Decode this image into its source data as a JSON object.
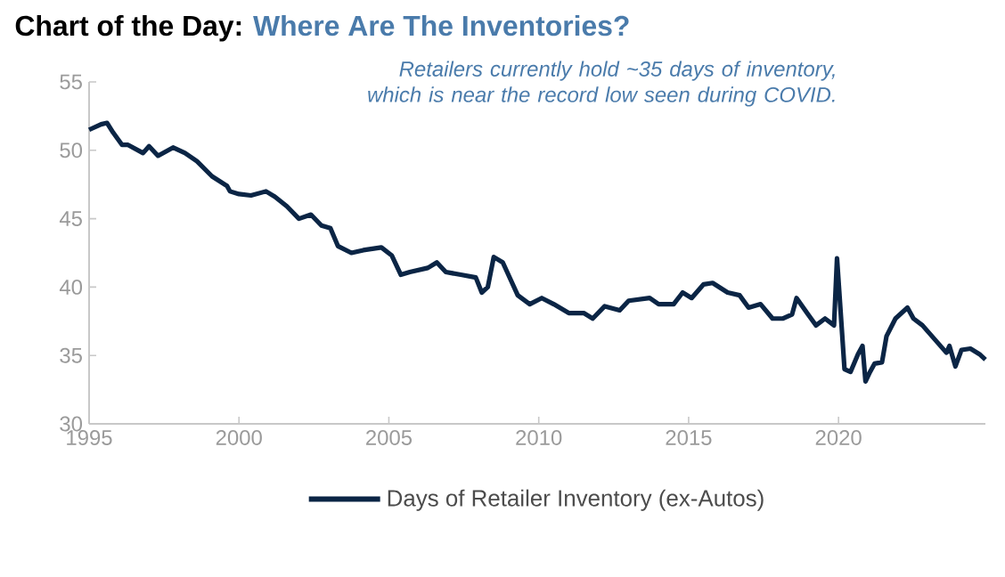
{
  "chart_data": {
    "type": "line",
    "title": "Chart of the Day:",
    "subtitle": "Where Are The Inventories?",
    "annotations": [
      "Retailers currently hold ~35 days of inventory, which is near the record low seen during COVID."
    ],
    "x": [
      1995.0,
      1995.4,
      1995.6,
      1995.8,
      1996.1,
      1996.3,
      1996.8,
      1997.0,
      1997.3,
      1997.8,
      1998.2,
      1998.6,
      1999.1,
      1999.6,
      1999.7,
      2000.0,
      2000.4,
      2000.9,
      2001.2,
      2001.6,
      2002.0,
      2002.4,
      2002.75,
      2003.05,
      2003.3,
      2003.75,
      2004.15,
      2004.75,
      2005.1,
      2005.4,
      2005.7,
      2006.3,
      2006.6,
      2006.9,
      2007.4,
      2007.9,
      2008.1,
      2008.3,
      2008.5,
      2008.8,
      2009.3,
      2009.7,
      2010.1,
      2010.5,
      2011.0,
      2011.5,
      2011.8,
      2012.2,
      2012.7,
      2013.0,
      2013.7,
      2014.0,
      2014.5,
      2014.8,
      2015.1,
      2015.5,
      2015.8,
      2016.3,
      2016.7,
      2017.0,
      2017.4,
      2017.8,
      2018.15,
      2018.45,
      2018.6,
      2018.95,
      2019.25,
      2019.55,
      2019.85,
      2019.95,
      2020.2,
      2020.4,
      2020.65,
      2020.8,
      2020.9,
      2021.05,
      2021.2,
      2021.45,
      2021.6,
      2021.9,
      2022.3,
      2022.5,
      2022.8,
      2023.2,
      2023.6,
      2023.7,
      2023.9,
      2024.1,
      2024.4,
      2024.7,
      2024.9
    ],
    "series": [
      {
        "name": "Days of Retailer Inventory (ex-Autos)",
        "color": "#0b2545",
        "values": [
          51.5,
          51.9,
          52.0,
          51.3,
          50.4,
          50.4,
          49.8,
          50.3,
          49.6,
          50.2,
          49.8,
          49.2,
          48.1,
          47.4,
          47.0,
          46.8,
          46.7,
          47.0,
          46.6,
          45.9,
          45.0,
          45.3,
          44.5,
          44.3,
          43.0,
          42.5,
          42.7,
          42.9,
          42.3,
          40.9,
          41.1,
          41.4,
          41.8,
          41.1,
          40.9,
          40.7,
          39.6,
          40.0,
          42.2,
          41.8,
          39.4,
          38.75,
          39.2,
          38.75,
          38.1,
          38.1,
          37.7,
          38.6,
          38.3,
          39.0,
          39.2,
          38.75,
          38.75,
          39.6,
          39.2,
          40.2,
          40.3,
          39.6,
          39.4,
          38.5,
          38.75,
          37.7,
          37.7,
          38.0,
          39.2,
          38.1,
          37.2,
          37.7,
          37.2,
          42.1,
          34.0,
          33.8,
          35.1,
          35.7,
          33.1,
          33.8,
          34.4,
          34.5,
          36.4,
          37.7,
          38.5,
          37.7,
          37.2,
          36.2,
          35.2,
          35.7,
          34.2,
          35.4,
          35.5,
          35.1,
          34.7
        ]
      }
    ],
    "xlim": [
      1995,
      2024.9
    ],
    "ylim": [
      30,
      55
    ],
    "xticks": [
      1995,
      2000,
      2005,
      2010,
      2015,
      2020
    ],
    "yticks": [
      30,
      35,
      40,
      45,
      50,
      55
    ],
    "legend": "bottom"
  }
}
